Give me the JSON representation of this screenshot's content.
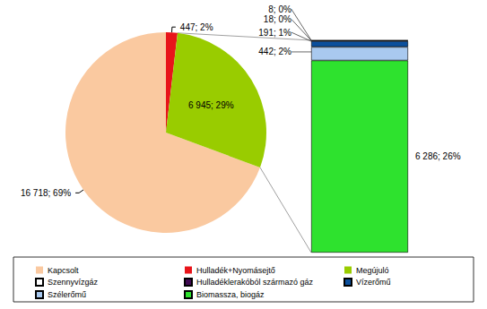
{
  "chart_data": [
    {
      "type": "pie",
      "categories": [
        "Kapcsolt",
        "Hulladék+Nyomásejtő",
        "Megújuló"
      ],
      "values": [
        16718,
        447,
        6945
      ],
      "value_labels": [
        "16 718; 69%",
        "447; 2%",
        "6 945; 29%"
      ],
      "colors": [
        "#fac9a0",
        "#e8141a",
        "#99cc00"
      ],
      "data_labels": true,
      "legend": "bottom"
    },
    {
      "type": "bar",
      "stacked": true,
      "categories": [
        null
      ],
      "series": [
        {
          "name": "Szennyvízgáz",
          "color": "#ffffff",
          "values": [
            8
          ],
          "value_labels": [
            "8; 0%"
          ]
        },
        {
          "name": "Hulladéklerakóból származó gáz",
          "color": "#3f0a52",
          "values": [
            18
          ],
          "value_labels": [
            "18; 0%"
          ]
        },
        {
          "name": "Vízerőmű",
          "color": "#0b4f9c",
          "values": [
            191
          ],
          "value_labels": [
            "191; 1%"
          ]
        },
        {
          "name": "Szélerőmű",
          "color": "#a9c9ef",
          "values": [
            442
          ],
          "value_labels": [
            "442; 2%"
          ]
        },
        {
          "name": "Biomassza, biogáz",
          "color": "#2ee22e",
          "values": [
            6286
          ],
          "value_labels": [
            "6 286; 26%"
          ]
        }
      ],
      "data_labels": true,
      "tick_labels": false
    }
  ]
}
